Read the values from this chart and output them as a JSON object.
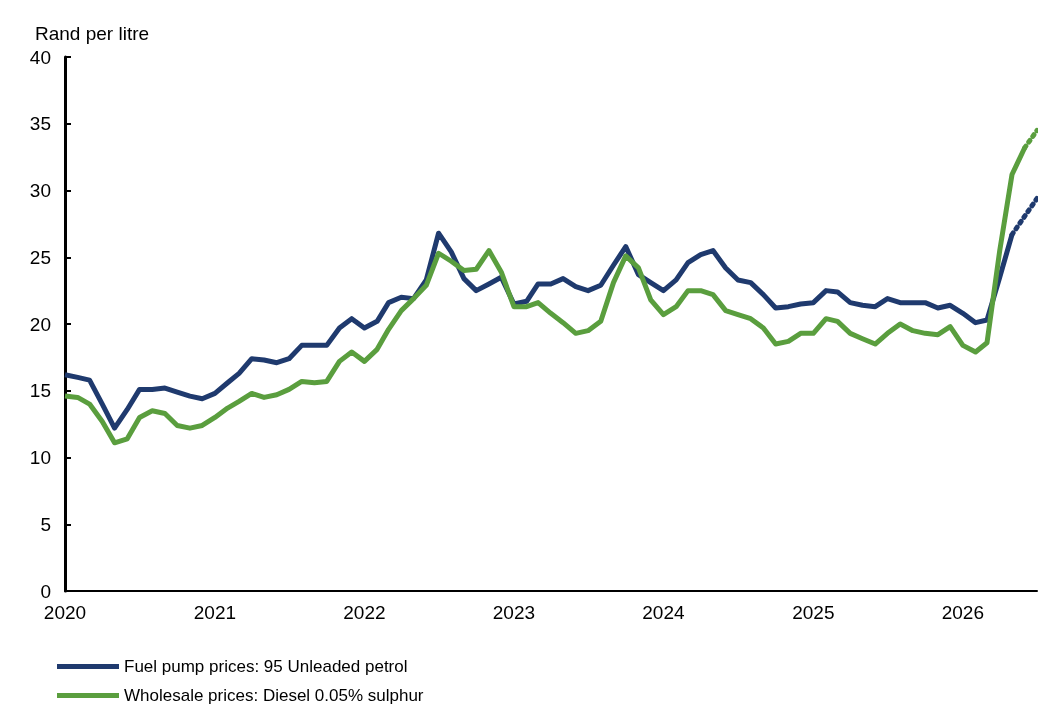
{
  "chart_data": {
    "type": "line",
    "ylabel": "Rand per litre",
    "xlim": [
      "2020-01",
      "2026-07"
    ],
    "xticks": [
      "2020",
      "2021",
      "2022",
      "2023",
      "2024",
      "2025",
      "2026"
    ],
    "ylim": [
      0,
      40
    ],
    "yticks": [
      0,
      5,
      10,
      15,
      20,
      25,
      30,
      35,
      40
    ],
    "grid": false,
    "legend": "bottom",
    "marker": "none",
    "series": [
      {
        "name": "Fuel pump prices: 95 Unleaded petrol",
        "color": "#1f3a6e",
        "line_style": "solid",
        "x": [
          "2020-01",
          "2020-02",
          "2020-03",
          "2020-04",
          "2020-05",
          "2020-06",
          "2020-07",
          "2020-08",
          "2020-09",
          "2020-10",
          "2020-11",
          "2020-12",
          "2021-01",
          "2021-02",
          "2021-03",
          "2021-04",
          "2021-05",
          "2021-06",
          "2021-07",
          "2021-08",
          "2021-09",
          "2021-10",
          "2021-11",
          "2021-12",
          "2022-01",
          "2022-02",
          "2022-03",
          "2022-04",
          "2022-05",
          "2022-06",
          "2022-07",
          "2022-08",
          "2022-09",
          "2022-10",
          "2022-11",
          "2022-12",
          "2023-01",
          "2023-02",
          "2023-03",
          "2023-04",
          "2023-05",
          "2023-06",
          "2023-07",
          "2023-08",
          "2023-09",
          "2023-10",
          "2023-11",
          "2023-12",
          "2024-01",
          "2024-02",
          "2024-03",
          "2024-04",
          "2024-05",
          "2024-06",
          "2024-07",
          "2024-08",
          "2024-09",
          "2024-10",
          "2024-11",
          "2024-12",
          "2025-01",
          "2025-02",
          "2025-03",
          "2025-04",
          "2025-05",
          "2025-06",
          "2025-07",
          "2025-08",
          "2025-09",
          "2025-10",
          "2025-11",
          "2025-12",
          "2026-01",
          "2026-02",
          "2026-03",
          "2026-04",
          "2026-05"
        ],
        "values": [
          16.2,
          16.0,
          15.8,
          14.0,
          12.2,
          13.6,
          15.1,
          15.1,
          15.2,
          14.9,
          14.6,
          14.4,
          14.8,
          15.6,
          16.3,
          17.4,
          17.3,
          17.1,
          17.4,
          18.4,
          18.4,
          18.4,
          19.7,
          20.4,
          19.7,
          20.2,
          21.6,
          22.0,
          21.9,
          23.3,
          26.8,
          25.4,
          23.4,
          22.5,
          23.0,
          23.5,
          21.5,
          21.7,
          23.0,
          23.0,
          23.4,
          22.8,
          22.5,
          22.9,
          24.4,
          25.8,
          23.7,
          23.1,
          22.5,
          23.3,
          24.6,
          25.2,
          25.5,
          24.2,
          23.3,
          23.1,
          22.2,
          21.2,
          21.3,
          21.5,
          21.6,
          22.5,
          22.4,
          21.6,
          21.4,
          21.3,
          21.9,
          21.6,
          21.6,
          21.6,
          21.2,
          21.4,
          20.8,
          20.1,
          20.3,
          23.5,
          26.7
        ]
      },
      {
        "name": "Wholesale prices: Diesel 0.05% sulphur",
        "color": "#5a9e3e",
        "line_style": "solid",
        "x": [
          "2020-01",
          "2020-02",
          "2020-03",
          "2020-04",
          "2020-05",
          "2020-06",
          "2020-07",
          "2020-08",
          "2020-09",
          "2020-10",
          "2020-11",
          "2020-12",
          "2021-01",
          "2021-02",
          "2021-03",
          "2021-04",
          "2021-05",
          "2021-06",
          "2021-07",
          "2021-08",
          "2021-09",
          "2021-10",
          "2021-11",
          "2021-12",
          "2022-01",
          "2022-02",
          "2022-03",
          "2022-04",
          "2022-05",
          "2022-06",
          "2022-07",
          "2022-08",
          "2022-09",
          "2022-10",
          "2022-11",
          "2022-12",
          "2023-01",
          "2023-02",
          "2023-03",
          "2023-04",
          "2023-05",
          "2023-06",
          "2023-07",
          "2023-08",
          "2023-09",
          "2023-10",
          "2023-11",
          "2023-12",
          "2024-01",
          "2024-02",
          "2024-03",
          "2024-04",
          "2024-05",
          "2024-06",
          "2024-07",
          "2024-08",
          "2024-09",
          "2024-10",
          "2024-11",
          "2024-12",
          "2025-01",
          "2025-02",
          "2025-03",
          "2025-04",
          "2025-05",
          "2025-06",
          "2025-07",
          "2025-08",
          "2025-09",
          "2025-10",
          "2025-11",
          "2025-12",
          "2026-01",
          "2026-02",
          "2026-03",
          "2026-04",
          "2026-05",
          "2026-06"
        ],
        "values": [
          14.6,
          14.5,
          14.0,
          12.7,
          11.1,
          11.4,
          13.0,
          13.5,
          13.3,
          12.4,
          12.2,
          12.4,
          13.0,
          13.7,
          14.2,
          14.8,
          14.5,
          14.7,
          15.1,
          15.7,
          15.6,
          15.7,
          17.2,
          17.9,
          17.2,
          18.1,
          19.6,
          21.0,
          21.9,
          22.9,
          25.3,
          24.7,
          24.0,
          24.1,
          25.5,
          23.9,
          21.3,
          21.3,
          21.6,
          20.8,
          20.1,
          19.3,
          19.5,
          20.2,
          23.1,
          25.1,
          24.2,
          21.8,
          20.7,
          21.3,
          22.5,
          22.5,
          22.2,
          21.0,
          20.7,
          20.4,
          19.7,
          18.5,
          18.7,
          19.3,
          19.3,
          20.4,
          20.2,
          19.3,
          18.9,
          18.5,
          19.3,
          20.0,
          19.5,
          19.3,
          19.2,
          19.8,
          18.4,
          17.9,
          18.6,
          25.5,
          31.2,
          33.2
        ]
      },
      {
        "color": "#1f3a6e",
        "line_style": "dotted",
        "x": [
          "2026-05",
          "2026-07"
        ],
        "values": [
          26.7,
          29.4
        ]
      },
      {
        "color": "#5a9e3e",
        "line_style": "dotted",
        "x": [
          "2026-06",
          "2026-07"
        ],
        "values": [
          33.2,
          34.5
        ]
      }
    ]
  }
}
